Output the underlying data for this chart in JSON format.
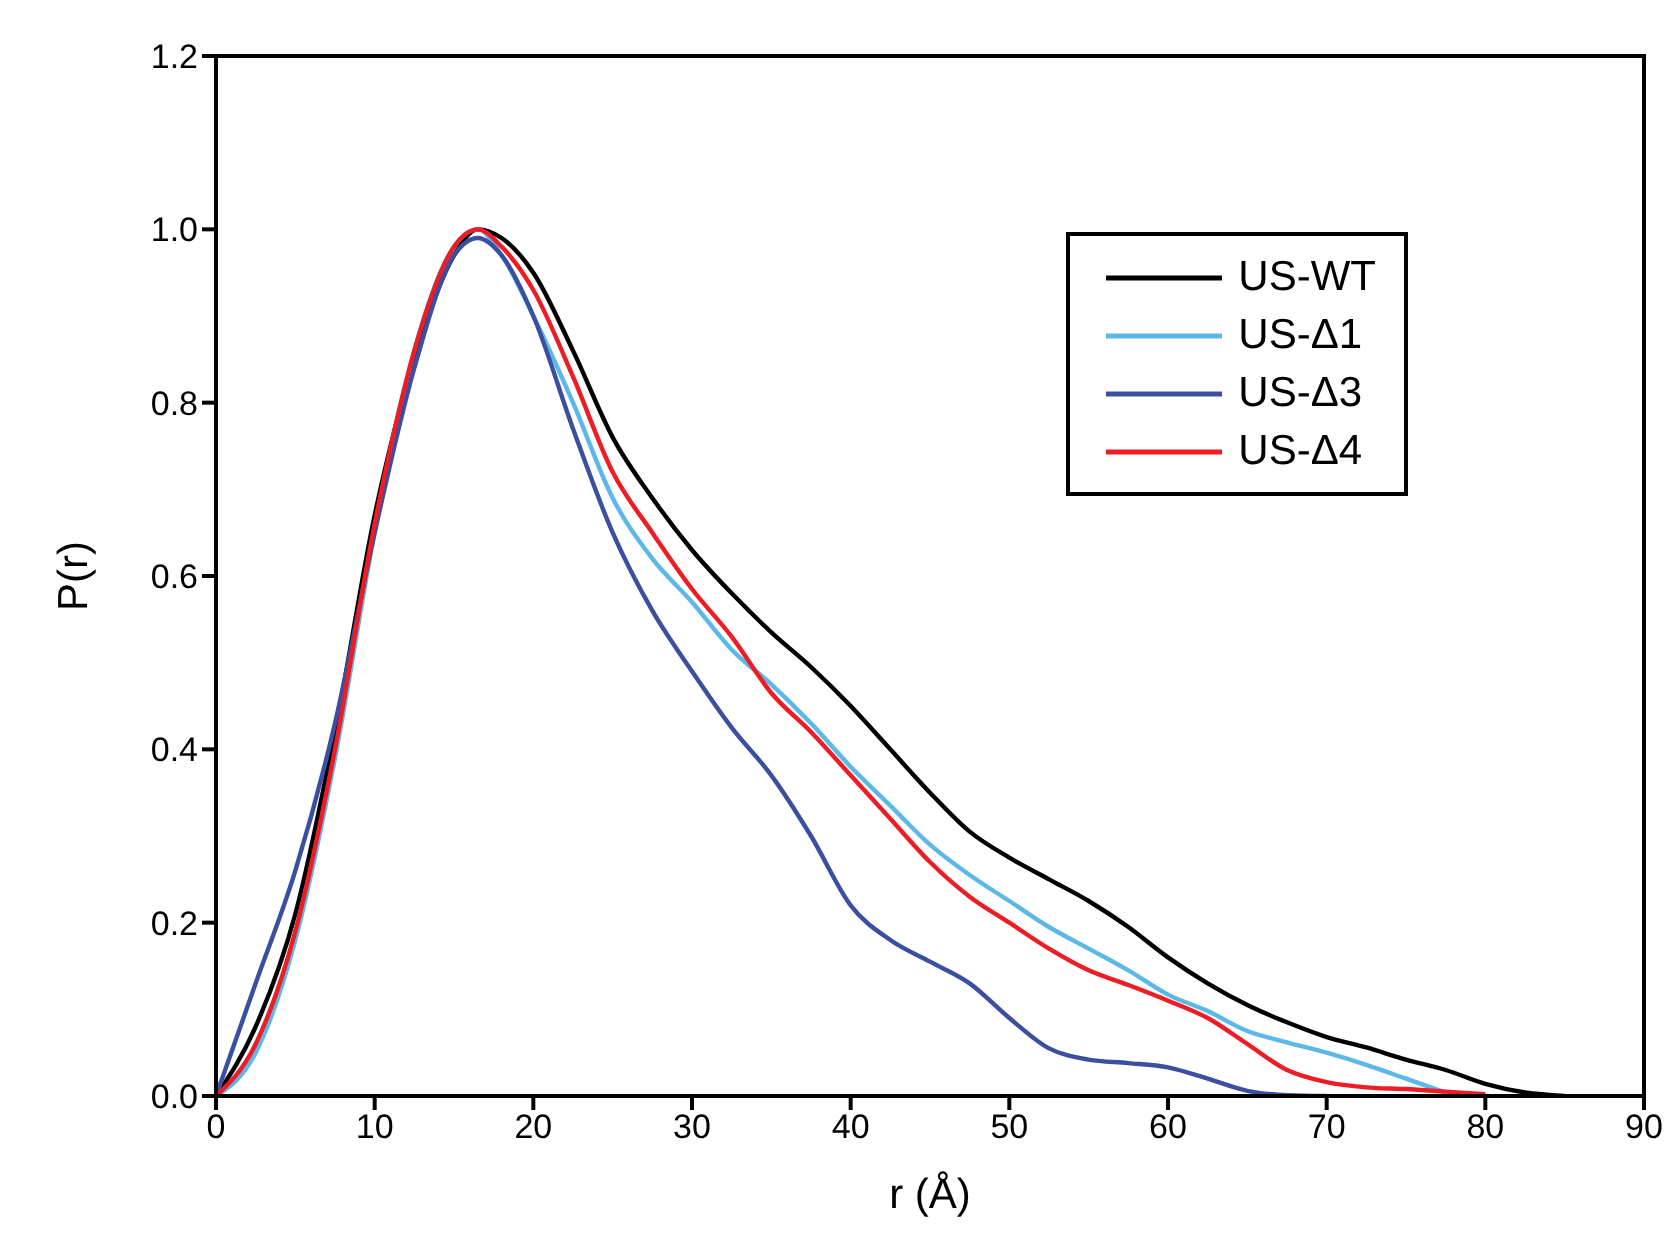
{
  "chart_data": {
    "type": "line",
    "xlabel": "r (Å)",
    "ylabel": "P(r)",
    "x": [
      0,
      2.5,
      5,
      7.5,
      10,
      12.5,
      15,
      16.5,
      18,
      20,
      22.5,
      25,
      27.5,
      30,
      32.5,
      35,
      37.5,
      40,
      42.5,
      45,
      47.5,
      50,
      52.5,
      55,
      57.5,
      60,
      62.5,
      65,
      67.5,
      70,
      72.5,
      75,
      77.5,
      80,
      82.5,
      85
    ],
    "series": [
      {
        "name": "US-WT",
        "color": "#000000",
        "values": [
          0,
          0.08,
          0.21,
          0.42,
          0.67,
          0.85,
          0.97,
          1.0,
          0.99,
          0.95,
          0.86,
          0.76,
          0.69,
          0.63,
          0.58,
          0.535,
          0.495,
          0.45,
          0.4,
          0.35,
          0.305,
          0.275,
          0.25,
          0.225,
          0.195,
          0.16,
          0.13,
          0.105,
          0.085,
          0.068,
          0.056,
          0.042,
          0.03,
          0.014,
          0.004,
          0
        ]
      },
      {
        "name": "US-Δ1",
        "color": "#5bb8e8",
        "values": [
          0,
          0.05,
          0.18,
          0.39,
          0.65,
          0.86,
          0.98,
          1.0,
          0.97,
          0.9,
          0.8,
          0.69,
          0.62,
          0.57,
          0.515,
          0.475,
          0.43,
          0.38,
          0.335,
          0.29,
          0.255,
          0.225,
          0.195,
          0.17,
          0.145,
          0.117,
          0.098,
          0.075,
          0.062,
          0.05,
          0.036,
          0.02,
          0.004,
          null,
          null,
          null
        ]
      },
      {
        "name": "US-Δ3",
        "color": "#3a4fa0",
        "values": [
          0,
          0.13,
          0.26,
          0.43,
          0.65,
          0.84,
          0.97,
          0.99,
          0.97,
          0.9,
          0.77,
          0.65,
          0.56,
          0.49,
          0.425,
          0.37,
          0.3,
          0.22,
          0.18,
          0.155,
          0.13,
          0.09,
          0.055,
          0.042,
          0.038,
          0.033,
          0.02,
          0.006,
          0.001,
          0,
          null,
          null,
          null,
          null,
          null,
          null
        ]
      },
      {
        "name": "US-Δ4",
        "color": "#ee1c25",
        "values": [
          0,
          0.06,
          0.19,
          0.4,
          0.66,
          0.86,
          0.98,
          1.0,
          0.98,
          0.93,
          0.83,
          0.72,
          0.65,
          0.585,
          0.53,
          0.465,
          0.42,
          0.37,
          0.32,
          0.27,
          0.23,
          0.2,
          0.17,
          0.145,
          0.128,
          0.11,
          0.09,
          0.06,
          0.03,
          0.016,
          0.01,
          0.008,
          0.005,
          0.002,
          null,
          null
        ]
      }
    ],
    "xlim": [
      0,
      90
    ],
    "xticks": [
      0,
      10,
      20,
      30,
      40,
      50,
      60,
      70,
      80,
      90
    ],
    "ylim": [
      0,
      1.2
    ],
    "yticks": [
      {
        "value": 0,
        "label": "0.0"
      },
      {
        "value": 0.2,
        "label": "0.2"
      },
      {
        "value": 0.4,
        "label": "0.4"
      },
      {
        "value": 0.6,
        "label": "0.6"
      },
      {
        "value": 0.8,
        "label": "0.8"
      },
      {
        "value": 1.0,
        "label": "1.0"
      },
      {
        "value": 1.2,
        "label": "1.2"
      }
    ],
    "legend": "top right",
    "marker": "none",
    "line_style": "solid",
    "grid": false
  }
}
